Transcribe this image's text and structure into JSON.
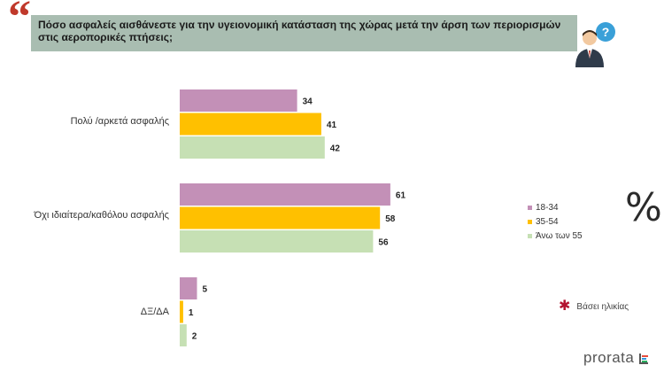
{
  "header": {
    "quote_glyph": "“",
    "question": "Πόσο ασφαλείς αισθάνεστε για την υγειονομική κατάσταση της χώρας μετά  την άρση των περιορισμών  στις αεροπορικές πτήσεις;"
  },
  "icons": {
    "person": "person-question-icon",
    "note_marker": "asterisk-icon",
    "brand_mark": "prorata-logo-icon"
  },
  "chart_data": {
    "type": "bar",
    "orientation": "horizontal",
    "categories": [
      "Πολύ /αρκετά ασφαλής",
      "Όχι ιδιαίτερα/καθόλου ασφαλής",
      "ΔΞ/ΔΑ"
    ],
    "series": [
      {
        "name": "18-34",
        "values": [
          34,
          61,
          5
        ],
        "color": "#c390b7"
      },
      {
        "name": "35-54",
        "values": [
          41,
          58,
          1
        ],
        "color": "#ffc000"
      },
      {
        "name": "Άνω των 55",
        "values": [
          42,
          56,
          2
        ],
        "color": "#c6e0b4"
      }
    ],
    "xlim": [
      0,
      65
    ],
    "grid": false,
    "legend_position": "right"
  },
  "side": {
    "percent": "%",
    "note": "Βάσει ηλικίας"
  },
  "brand": {
    "name": "prorata"
  }
}
